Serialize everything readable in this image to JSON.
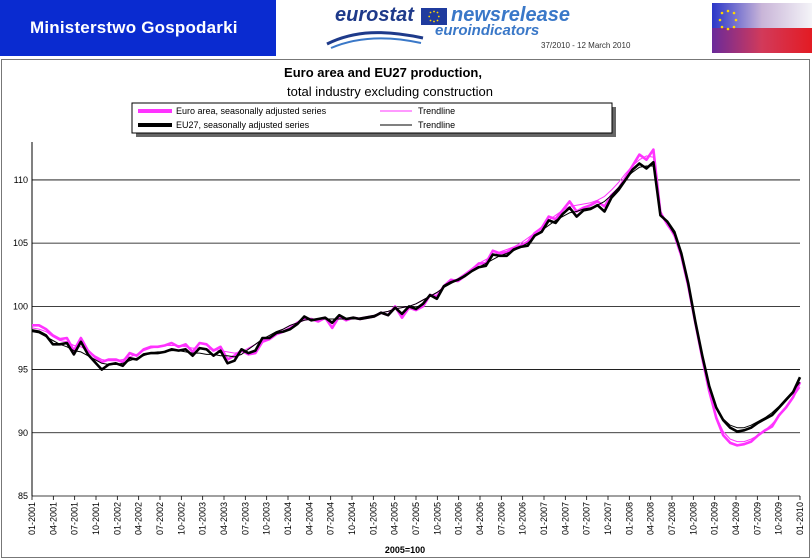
{
  "header": {
    "ministry": "Ministerstwo Gospodarki",
    "eurostat_word": "eurostat",
    "newsrelease_word": "newsrelease",
    "euroindicators_word": "euroindicators",
    "release_ref": "37/2010 - 12 March 2010"
  },
  "colors": {
    "euro_area": "#ff33ff",
    "eu27": "#000000",
    "ministry_bg": "#0a2bd0"
  },
  "chart_data": {
    "type": "line",
    "title": "Euro area and EU27 production,",
    "subtitle": "total industry excluding construction",
    "xlabel": "2005=100",
    "ylabel": "",
    "ylim": [
      85,
      113
    ],
    "yticks": [
      85,
      90,
      95,
      100,
      105,
      110
    ],
    "grid": true,
    "legend_position": "top",
    "legend": [
      "Euro area, seasonally adjusted series",
      "Trendline",
      "EU27, seasonally adjusted series",
      "Trendline"
    ],
    "x_tick_labels": [
      "01-2001",
      "04-2001",
      "07-2001",
      "10-2001",
      "01-2002",
      "04-2002",
      "07-2002",
      "10-2002",
      "01-2003",
      "04-2003",
      "07-2003",
      "10-2003",
      "01-2004",
      "04-2004",
      "07-2004",
      "10-2004",
      "01-2005",
      "04-2005",
      "07-2005",
      "10-2005",
      "01-2006",
      "04-2006",
      "07-2006",
      "10-2006",
      "01-2007",
      "04-2007",
      "07-2007",
      "10-2007",
      "01-2008",
      "04-2008",
      "07-2008",
      "10-2008",
      "01-2009",
      "04-2009",
      "07-2009",
      "10-2009",
      "01-2010"
    ],
    "series": [
      {
        "name": "Euro area, seasonally adjusted series",
        "values": [
          98.5,
          98.5,
          98.2,
          97.7,
          97.4,
          97.5,
          96.5,
          97.5,
          96.5,
          96.0,
          95.6,
          95.8,
          95.8,
          95.6,
          96.3,
          96.1,
          96.6,
          96.8,
          96.8,
          96.9,
          97.1,
          96.8,
          97.0,
          96.4,
          97.1,
          97.0,
          96.5,
          96.8,
          95.8,
          96.1,
          96.5,
          96.2,
          96.3,
          97.2,
          97.4,
          97.8,
          98.0,
          98.3,
          98.7,
          99.0,
          99.0,
          98.8,
          99.1,
          98.3,
          99.2,
          98.9,
          99.1,
          99.0,
          99.1,
          99.2,
          99.5,
          99.3,
          100.0,
          99.1,
          99.9,
          99.7,
          100.0,
          100.9,
          100.8,
          101.6,
          102.1,
          102.0,
          102.4,
          102.9,
          103.4,
          103.4,
          104.4,
          104.2,
          104.3,
          104.6,
          104.8,
          105.1,
          105.8,
          106.2,
          107.1,
          106.9,
          107.6,
          108.3,
          107.5,
          107.8,
          108.0,
          108.3,
          107.9,
          108.8,
          109.3,
          110.2,
          111.1,
          112.0,
          111.6,
          112.4,
          107.4,
          106.5,
          105.7,
          104.0,
          101.6,
          98.7,
          95.9,
          93.3,
          91.2,
          89.8,
          89.2,
          89.0,
          89.1,
          89.3,
          89.8,
          90.2,
          90.5,
          91.4,
          92.0,
          92.8,
          94.0
        ]
      },
      {
        "name": "Trendline",
        "values": [
          98.3,
          98.2,
          98.0,
          97.6,
          97.3,
          97.2,
          96.9,
          96.8,
          96.5,
          96.1,
          95.8,
          95.7,
          95.7,
          95.8,
          96.0,
          96.2,
          96.5,
          96.7,
          96.8,
          96.9,
          96.9,
          96.9,
          96.8,
          96.7,
          96.7,
          96.6,
          96.6,
          96.5,
          96.4,
          96.3,
          96.4,
          96.7,
          97.0,
          97.3,
          97.6,
          97.9,
          98.2,
          98.5,
          98.7,
          98.9,
          99.0,
          99.0,
          99.0,
          99.0,
          99.0,
          99.0,
          99.0,
          99.1,
          99.2,
          99.3,
          99.5,
          99.6,
          99.8,
          99.9,
          100.0,
          100.2,
          100.5,
          100.8,
          101.1,
          101.5,
          101.9,
          102.2,
          102.6,
          103.0,
          103.4,
          103.7,
          104.0,
          104.3,
          104.5,
          104.7,
          105.0,
          105.4,
          105.8,
          106.3,
          106.8,
          107.2,
          107.6,
          107.9,
          108.0,
          108.1,
          108.2,
          108.4,
          108.7,
          109.2,
          109.8,
          110.5,
          111.1,
          111.6,
          111.9,
          111.8,
          107.6,
          106.5,
          105.5,
          104.0,
          101.5,
          98.6,
          95.8,
          93.3,
          91.3,
          90.1,
          89.5,
          89.3,
          89.3,
          89.5,
          89.8,
          90.2,
          90.7,
          91.3,
          92.0,
          92.8,
          93.6
        ]
      },
      {
        "name": "EU27, seasonally adjusted series",
        "values": [
          98.1,
          98.0,
          97.7,
          97.0,
          97.0,
          97.1,
          96.2,
          97.2,
          96.2,
          95.6,
          95.0,
          95.4,
          95.5,
          95.3,
          95.9,
          95.8,
          96.2,
          96.3,
          96.3,
          96.4,
          96.6,
          96.5,
          96.6,
          96.1,
          96.7,
          96.6,
          96.1,
          96.5,
          95.5,
          95.7,
          96.6,
          96.3,
          96.5,
          97.5,
          97.5,
          97.9,
          98.0,
          98.2,
          98.6,
          99.2,
          98.9,
          99.0,
          99.1,
          98.7,
          99.3,
          99.0,
          99.1,
          99.0,
          99.1,
          99.2,
          99.5,
          99.3,
          99.9,
          99.4,
          100.0,
          99.8,
          100.2,
          100.9,
          100.6,
          101.6,
          101.9,
          102.1,
          102.4,
          102.8,
          103.1,
          103.2,
          104.1,
          104.0,
          104.0,
          104.5,
          104.7,
          104.8,
          105.6,
          105.9,
          106.8,
          106.6,
          107.3,
          107.8,
          107.1,
          107.6,
          107.7,
          108.0,
          107.5,
          108.6,
          109.2,
          110.0,
          110.8,
          111.3,
          110.9,
          111.4,
          107.2,
          106.7,
          105.9,
          104.2,
          101.8,
          98.8,
          96.1,
          93.7,
          92.0,
          91.0,
          90.4,
          90.1,
          90.2,
          90.4,
          90.8,
          91.1,
          91.4,
          92.0,
          92.6,
          93.2,
          94.4
        ]
      },
      {
        "name": "Trendline",
        "values": [
          98.0,
          97.9,
          97.6,
          97.3,
          97.0,
          96.8,
          96.5,
          96.4,
          96.1,
          95.8,
          95.5,
          95.4,
          95.4,
          95.5,
          95.7,
          95.9,
          96.1,
          96.3,
          96.4,
          96.4,
          96.5,
          96.5,
          96.4,
          96.3,
          96.3,
          96.2,
          96.2,
          96.1,
          96.1,
          96.0,
          96.2,
          96.6,
          97.0,
          97.4,
          97.7,
          98.0,
          98.2,
          98.5,
          98.7,
          98.9,
          99.0,
          99.0,
          99.0,
          99.0,
          99.0,
          99.0,
          99.0,
          99.1,
          99.2,
          99.3,
          99.5,
          99.6,
          99.8,
          99.9,
          100.0,
          100.2,
          100.5,
          100.8,
          101.1,
          101.5,
          101.8,
          102.1,
          102.5,
          102.8,
          103.1,
          103.4,
          103.7,
          104.0,
          104.2,
          104.4,
          104.7,
          105.0,
          105.5,
          106.0,
          106.4,
          106.8,
          107.1,
          107.4,
          107.5,
          107.7,
          107.8,
          108.0,
          108.3,
          108.8,
          109.4,
          110.1,
          110.6,
          111.0,
          111.1,
          111.1,
          107.3,
          106.6,
          105.7,
          104.2,
          101.7,
          98.7,
          96.0,
          93.6,
          92.0,
          91.1,
          90.6,
          90.4,
          90.4,
          90.6,
          90.9,
          91.2,
          91.6,
          92.1,
          92.7,
          93.3,
          94.0
        ]
      }
    ]
  }
}
